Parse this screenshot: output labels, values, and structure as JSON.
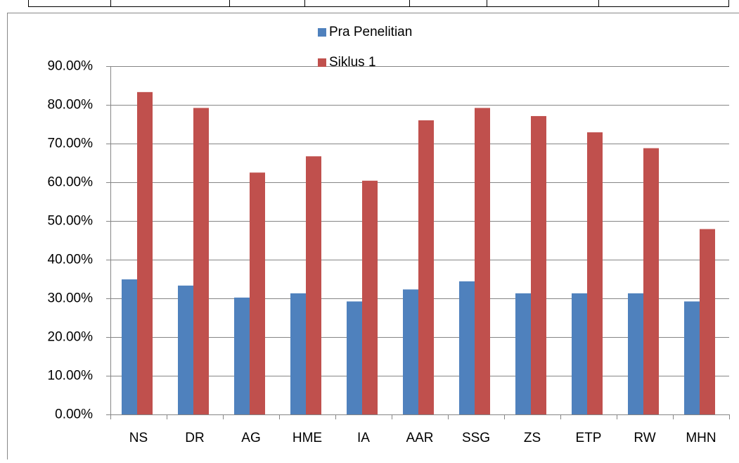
{
  "chart_data": {
    "type": "bar",
    "categories": [
      "NS",
      "DR",
      "AG",
      "HME",
      "IA",
      "AAR",
      "SSG",
      "ZS",
      "ETP",
      "RW",
      "MHN"
    ],
    "series": [
      {
        "name": "Pra Penelitian",
        "color": "#4f81bd",
        "values": [
          34.9,
          33.3,
          30.2,
          31.3,
          29.2,
          32.3,
          34.4,
          31.3,
          31.3,
          31.3,
          29.2
        ]
      },
      {
        "name": "Siklus 1",
        "color": "#c0504d",
        "values": [
          83.3,
          79.2,
          62.5,
          66.7,
          60.4,
          76.0,
          79.2,
          77.1,
          72.9,
          68.8,
          47.9
        ]
      }
    ],
    "ylim": [
      0,
      90
    ],
    "yticks": [
      {
        "value": 0,
        "label": "0.00%"
      },
      {
        "value": 10,
        "label": "10.00%"
      },
      {
        "value": 20,
        "label": "20.00%"
      },
      {
        "value": 30,
        "label": "30.00%"
      },
      {
        "value": 40,
        "label": "40.00%"
      },
      {
        "value": 50,
        "label": "50.00%"
      },
      {
        "value": 60,
        "label": "60.00%"
      },
      {
        "value": 70,
        "label": "70.00%"
      },
      {
        "value": 80,
        "label": "80.00%"
      },
      {
        "value": 90,
        "label": "90.00%"
      }
    ],
    "grid": true,
    "legend": "top"
  }
}
